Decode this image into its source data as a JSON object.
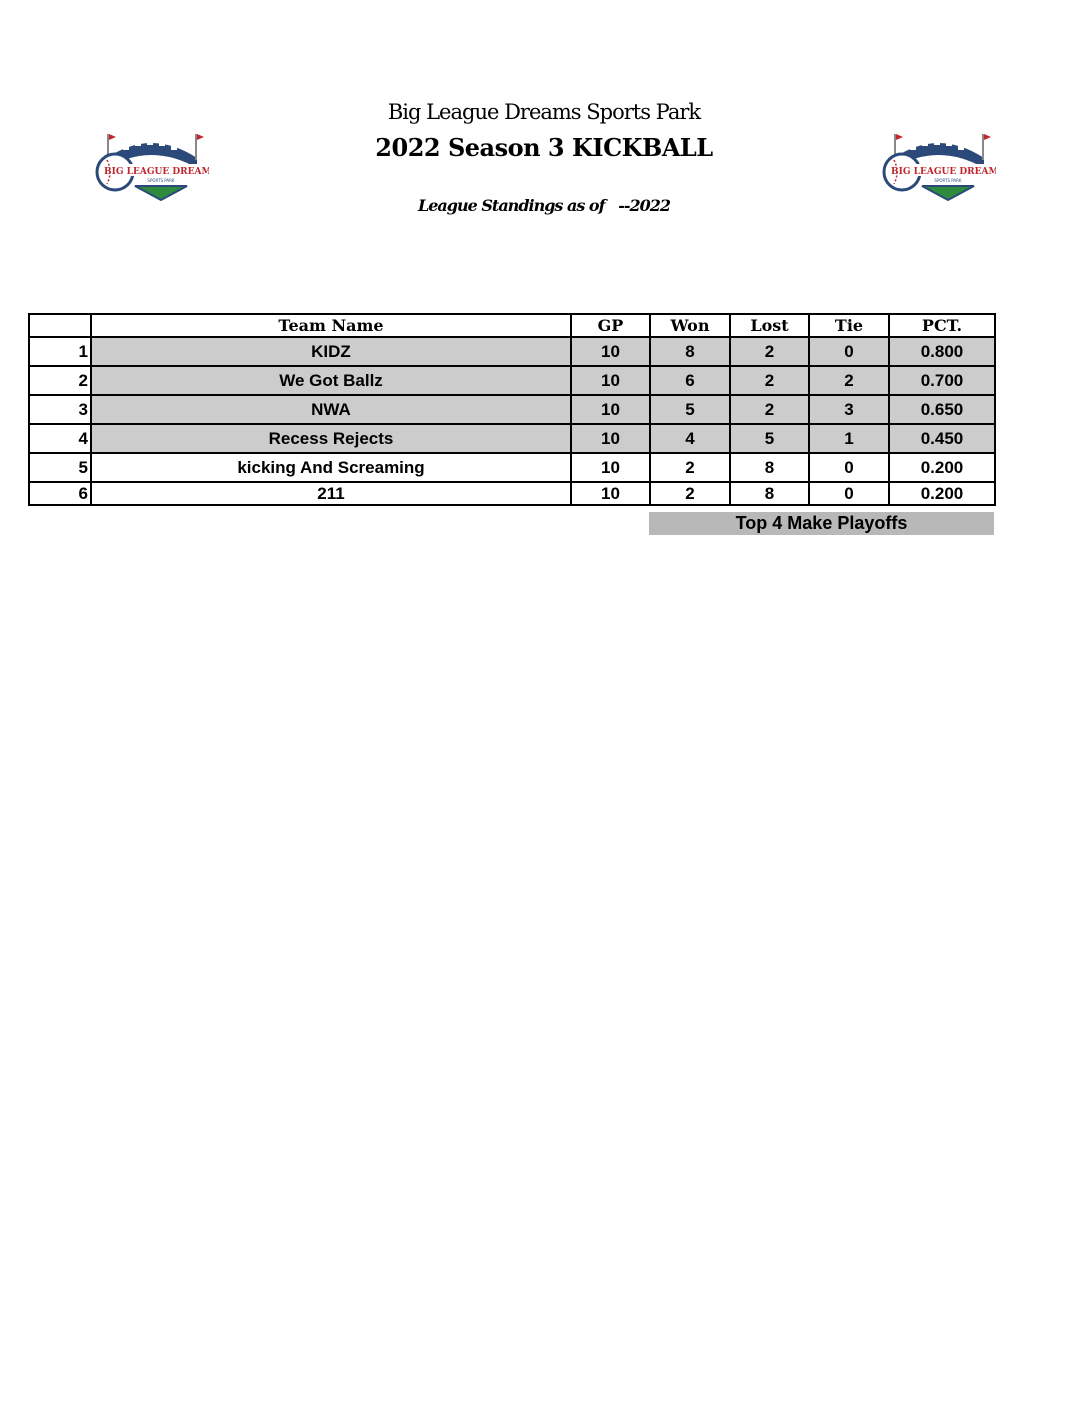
{
  "header": {
    "venue": "Big League Dreams Sports Park",
    "title": "2022 Season 3 KICKBALL",
    "subtitle": "League Standings as of   --2022",
    "logo_text": "BIG LEAGUE DREAMS",
    "logo_subtext": "SPORTS PARK"
  },
  "table": {
    "columns": [
      "",
      "Team Name",
      "GP",
      "Won",
      "Lost",
      "Tie",
      "PCT."
    ],
    "rows": [
      {
        "rank": "1",
        "team": "KIDZ",
        "gp": "10",
        "won": "8",
        "lost": "2",
        "tie": "0",
        "pct": "0.800",
        "highlight": true
      },
      {
        "rank": "2",
        "team": "We Got Ballz",
        "gp": "10",
        "won": "6",
        "lost": "2",
        "tie": "2",
        "pct": "0.700",
        "highlight": true
      },
      {
        "rank": "3",
        "team": "NWA",
        "gp": "10",
        "won": "5",
        "lost": "2",
        "tie": "3",
        "pct": "0.650",
        "highlight": true
      },
      {
        "rank": "4",
        "team": "Recess Rejects",
        "gp": "10",
        "won": "4",
        "lost": "5",
        "tie": "1",
        "pct": "0.450",
        "highlight": true
      },
      {
        "rank": "5",
        "team": "kicking And Screaming",
        "gp": "10",
        "won": "2",
        "lost": "8",
        "tie": "0",
        "pct": "0.200",
        "highlight": false
      },
      {
        "rank": "6",
        "team": "211",
        "gp": "10",
        "won": "2",
        "lost": "8",
        "tie": "0",
        "pct": "0.200",
        "highlight": false
      }
    ],
    "footer_note": "Top 4 Make Playoffs"
  },
  "colors": {
    "highlight": "#cccccc",
    "footer": "#b8b8b8",
    "logo_blue": "#2b4a7a",
    "logo_red": "#c0262d",
    "logo_green": "#2e8b3e"
  }
}
